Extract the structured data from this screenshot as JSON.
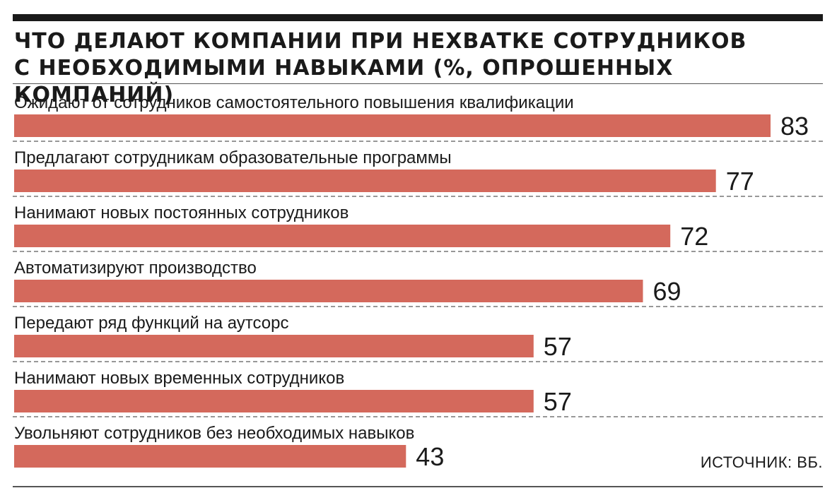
{
  "header": {
    "title_line1": "ЧТО ДЕЛАЮТ КОМПАНИИ ПРИ НЕХВАТКЕ СОТРУДНИКОВ",
    "title_line2": "С НЕОБХОДИМЫМИ НАВЫКАМИ (%, ОПРОШЕННЫХ КОМПАНИЙ)"
  },
  "source": "ИСТОЧНИК: ВБ.",
  "colors": {
    "bar": "#d4695c",
    "text": "#1a1a1a",
    "divider": "#777777"
  },
  "chart_data": {
    "type": "bar",
    "orientation": "horizontal",
    "title": "ЧТО ДЕЛАЮТ КОМПАНИИ ПРИ НЕХВАТКЕ СОТРУДНИКОВ С НЕОБХОДИМЫМИ НАВЫКАМИ (%, ОПРОШЕННЫХ КОМПАНИЙ)",
    "categories": [
      "Ожидают от сотрудников самостоятельного повышения квалификации",
      "Предлагают сотрудникам образовательные программы",
      "Нанимают новых постоянных сотрудников",
      "Автоматизируют производство",
      "Передают ряд функций на аутсорс",
      "Нанимают новых временных сотрудников",
      "Увольняют сотрудников без необходимых навыков"
    ],
    "values": [
      83,
      77,
      72,
      69,
      57,
      57,
      43
    ],
    "xlim": [
      0,
      83
    ],
    "grid": false,
    "legend": "none"
  }
}
